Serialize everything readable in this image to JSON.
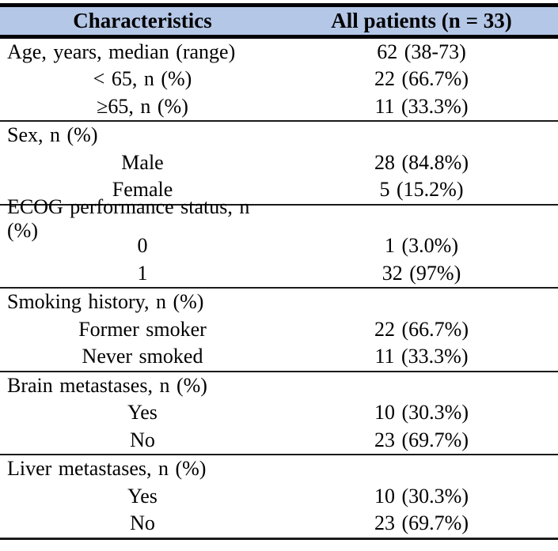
{
  "table": {
    "header": {
      "col1": "Characteristics",
      "col2": "All patients (n = 33)"
    },
    "groups": [
      {
        "rows": [
          {
            "label": "Age, years, median (range)",
            "value": "62 (38-73)",
            "indent": false
          },
          {
            "label": "< 65, n (%)",
            "value": "22 (66.7%)",
            "indent": true
          },
          {
            "label": "≥65, n (%)",
            "value": "11 (33.3%)",
            "indent": true
          }
        ]
      },
      {
        "rows": [
          {
            "label": "Sex, n (%)",
            "value": "",
            "indent": false
          },
          {
            "label": "Male",
            "value": "28 (84.8%)",
            "indent": true
          },
          {
            "label": "Female",
            "value": "5 (15.2%)",
            "indent": true
          }
        ]
      },
      {
        "rows": [
          {
            "label": "ECOG performance status, n (%)",
            "value": "",
            "indent": false
          },
          {
            "label": "0",
            "value": "1 (3.0%)",
            "indent": true
          },
          {
            "label": "1",
            "value": "32 (97%)",
            "indent": true
          }
        ]
      },
      {
        "rows": [
          {
            "label": "Smoking history, n (%)",
            "value": "",
            "indent": false
          },
          {
            "label": "Former smoker",
            "value": "22 (66.7%)",
            "indent": true
          },
          {
            "label": "Never smoked",
            "value": "11 (33.3%)",
            "indent": true
          }
        ]
      },
      {
        "rows": [
          {
            "label": "Brain metastases, n (%)",
            "value": "",
            "indent": false
          },
          {
            "label": "Yes",
            "value": "10 (30.3%)",
            "indent": true
          },
          {
            "label": "No",
            "value": "23 (69.7%)",
            "indent": true
          }
        ]
      },
      {
        "rows": [
          {
            "label": "Liver metastases, n (%)",
            "value": "",
            "indent": false
          },
          {
            "label": "Yes",
            "value": "10 (30.3%)",
            "indent": true
          },
          {
            "label": "No",
            "value": "23 (69.7%)",
            "indent": true
          }
        ]
      }
    ],
    "colors": {
      "header_bg": "#b4c7e7",
      "border": "#000000"
    }
  }
}
